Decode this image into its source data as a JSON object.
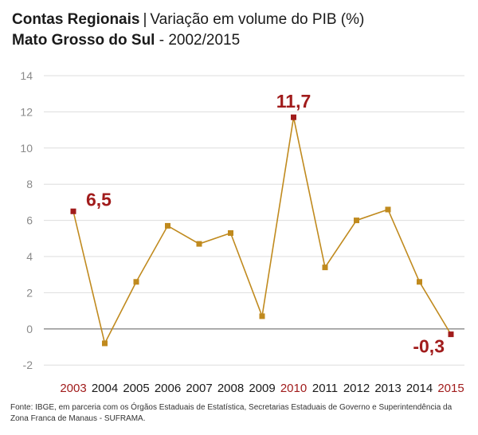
{
  "header": {
    "title_bold": "Contas Regionais",
    "separator": "|",
    "title_rest": "Variação em volume do PIB (%)",
    "subtitle_bold": "Mato Grosso do Sul",
    "subtitle_rest": "- 2002/2015"
  },
  "source": "Fonte: IBGE, em parceria com os Órgãos Estaduais de Estatística, Secretarias Estaduais de Governo e Superintendência da Zona Franca de Manaus - SUFRAMA.",
  "colors": {
    "line": "#c08a1e",
    "highlight": "#a11c1c",
    "grid": "#dddddd",
    "zero_line": "#9a9a9a"
  },
  "chart_data": {
    "type": "line",
    "title": "Contas Regionais | Variação em volume do PIB (%)",
    "subtitle": "Mato Grosso do Sul - 2002/2015",
    "xlabel": "",
    "ylabel": "",
    "categories": [
      "2003",
      "2004",
      "2005",
      "2006",
      "2007",
      "2008",
      "2009",
      "2010",
      "2011",
      "2012",
      "2013",
      "2014",
      "2015"
    ],
    "series": [
      {
        "values": [
          6.5,
          -0.8,
          2.6,
          5.7,
          4.7,
          5.3,
          0.7,
          11.7,
          3.4,
          6.0,
          6.6,
          2.6,
          -0.3
        ]
      }
    ],
    "data_labels": [
      {
        "category": "2003",
        "text": "6,5"
      },
      {
        "category": "2010",
        "text": "11,7"
      },
      {
        "category": "2015",
        "text": "-0,3"
      }
    ],
    "highlighted_categories": [
      "2003",
      "2010",
      "2015"
    ],
    "yticks": [
      "14",
      "12",
      "10",
      "8",
      "6",
      "4",
      "2",
      "0",
      "-2"
    ],
    "ylim": [
      -2,
      14
    ],
    "grid": true
  }
}
